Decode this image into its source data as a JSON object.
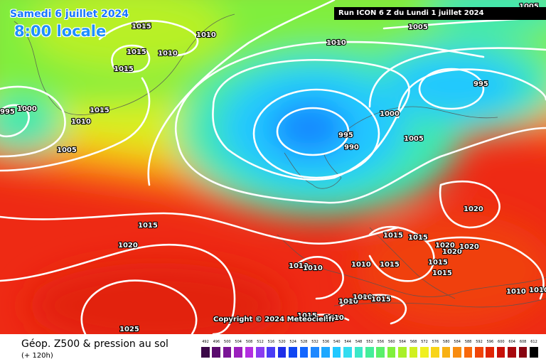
{
  "header": {
    "date": "Samedi 6 juillet 2024",
    "time": "8:00 locale",
    "run": "Run ICON 6 Z du Lundi 1 juillet 2024"
  },
  "copyright": "Copyright © 2024 Meteociel.fr",
  "footer": {
    "title": "Géop. Z500 & pression au sol",
    "subtitle": "(+ 120h)"
  },
  "legend": {
    "labels": [
      "492",
      "496",
      "500",
      "504",
      "508",
      "512",
      "516",
      "520",
      "524",
      "528",
      "532",
      "536",
      "540",
      "544",
      "548",
      "552",
      "556",
      "560",
      "564",
      "568",
      "572",
      "576",
      "580",
      "584",
      "588",
      "592",
      "596",
      "600",
      "604",
      "608",
      "612"
    ],
    "colors": [
      "#3b0848",
      "#5a0b6e",
      "#7a1596",
      "#9b1fbd",
      "#b32ee0",
      "#8a3cf0",
      "#4a3cf5",
      "#1e2ee8",
      "#0f46f2",
      "#1366ff",
      "#1e88ff",
      "#1ea8ff",
      "#21c8ff",
      "#33dcf0",
      "#3ce8c8",
      "#44ee9a",
      "#5af06a",
      "#80f03c",
      "#a8f028",
      "#d0f020",
      "#f0f020",
      "#f8d418",
      "#f8b014",
      "#f88c10",
      "#f8680c",
      "#f04408",
      "#e02404",
      "#c81008",
      "#a8080c",
      "#880410",
      "#000000"
    ]
  },
  "isobars": [
    {
      "text": "1015",
      "pos": "ne-greenland"
    },
    {
      "text": "1015",
      "pos": "greenland-center"
    },
    {
      "text": "1015",
      "pos": "greenland-west"
    },
    {
      "text": "1015",
      "pos": "greenland-south"
    },
    {
      "text": "1010",
      "pos": "greenland-east"
    },
    {
      "text": "1010",
      "pos": "greenland-east-2"
    },
    {
      "text": "1010",
      "pos": "greenland-southtip"
    },
    {
      "text": "1010",
      "pos": "norwegian-sea"
    },
    {
      "text": "995",
      "pos": "far-west"
    },
    {
      "text": "1000",
      "pos": "west"
    },
    {
      "text": "1005",
      "pos": "north-atlantic"
    },
    {
      "text": "1005",
      "pos": "barents"
    },
    {
      "text": "1005",
      "pos": "top-right"
    },
    {
      "text": "995",
      "pos": "finland"
    },
    {
      "text": "1000",
      "pos": "norway"
    },
    {
      "text": "995",
      "pos": "north-sea"
    },
    {
      "text": "990",
      "pos": "low-center"
    },
    {
      "text": "1005",
      "pos": "sweden-south"
    },
    {
      "text": "1015",
      "pos": "atlantic"
    },
    {
      "text": "1020",
      "pos": "atlantic-high"
    },
    {
      "text": "1025",
      "pos": "azores"
    },
    {
      "text": "1015",
      "pos": "alps-west"
    },
    {
      "text": "1015",
      "pos": "alps-east"
    },
    {
      "text": "1020",
      "pos": "balkans"
    },
    {
      "text": "1020",
      "pos": "italy-1"
    },
    {
      "text": "1020",
      "pos": "italy-2"
    },
    {
      "text": "1020",
      "pos": "italy-3"
    },
    {
      "text": "1015",
      "pos": "adriatic"
    },
    {
      "text": "1015",
      "pos": "ionian"
    },
    {
      "text": "1010",
      "pos": "iberia-1"
    },
    {
      "text": "1010",
      "pos": "iberia-2"
    },
    {
      "text": "1010",
      "pos": "spain-east"
    },
    {
      "text": "1015",
      "pos": "gulf-lion"
    },
    {
      "text": "1010",
      "pos": "balearic-1"
    },
    {
      "text": "1010",
      "pos": "balearic-2"
    },
    {
      "text": "1015",
      "pos": "tyrrhenian"
    },
    {
      "text": "1015",
      "pos": "north-africa"
    },
    {
      "text": "1010",
      "pos": "north-africa-2"
    },
    {
      "text": "1010",
      "pos": "greece-east"
    },
    {
      "text": "1010",
      "pos": "aegean"
    },
    {
      "text": "1005",
      "pos": "top-right-corner"
    }
  ]
}
